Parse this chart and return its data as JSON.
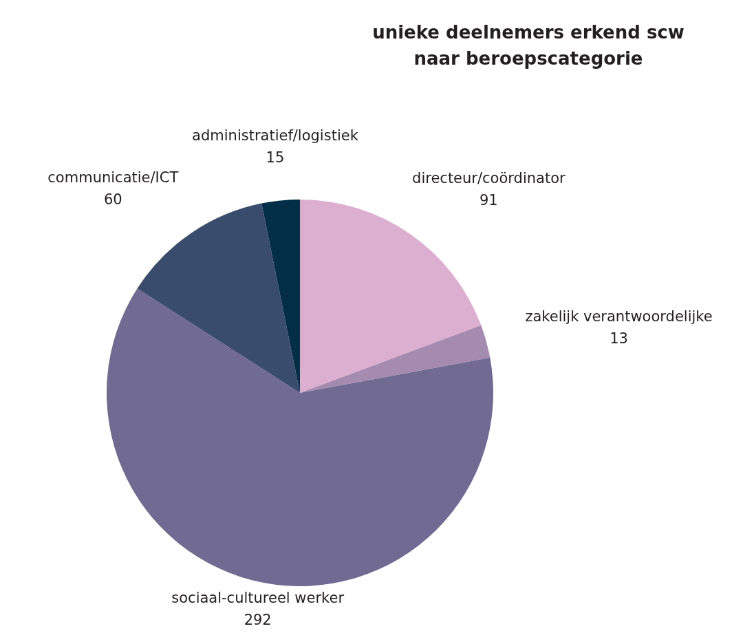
{
  "chart_data": {
    "type": "pie",
    "title": "unieke deelnemers erkend scw\nnaar beroepscategorie",
    "categories": [
      "directeur/coördinator",
      "zakelijk verantwoordelijke",
      "sociaal-cultureel werker",
      "communicatie/ICT",
      "administratief/logistiek"
    ],
    "values": [
      91,
      13,
      292,
      60,
      15
    ],
    "colors": [
      "#dcaed0",
      "#a68bb1",
      "#716a93",
      "#394c6d",
      "#022e47"
    ],
    "data_labels": true,
    "legend": false
  }
}
